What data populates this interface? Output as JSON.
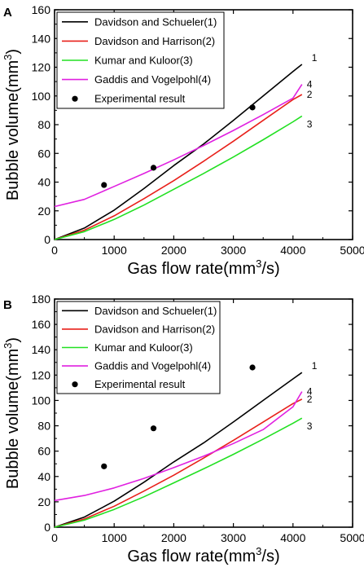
{
  "chart_data": [
    {
      "panel": "A",
      "type": "line",
      "xlabel": "Gas flow rate(mm³/s)",
      "ylabel": "Bubble volume(mm³)",
      "xlim": [
        0,
        5000
      ],
      "ylim": [
        0,
        160
      ],
      "xticks": [
        0,
        1000,
        2000,
        3000,
        4000,
        5000
      ],
      "yticks": [
        0,
        20,
        40,
        60,
        80,
        100,
        120,
        140,
        160
      ],
      "grid": false,
      "legend_position": "top-left",
      "series": [
        {
          "name": "Davidson and Schueler(1)",
          "label": "1",
          "color": "#000000",
          "type": "line",
          "x": [
            0,
            500,
            1000,
            1500,
            2000,
            2500,
            3000,
            3500,
            4000,
            4150
          ],
          "y": [
            0,
            8,
            20.5,
            35.5,
            51.5,
            66.5,
            83,
            100,
            117,
            122
          ]
        },
        {
          "name": "Davidson and Harrison(2)",
          "label": "2",
          "color": "#e8201a",
          "type": "line",
          "x": [
            0,
            500,
            1000,
            1500,
            2000,
            2500,
            3000,
            3500,
            4000,
            4150
          ],
          "y": [
            0,
            6.5,
            16.5,
            28.5,
            41,
            54.5,
            68.5,
            83,
            97.5,
            101
          ]
        },
        {
          "name": "Kumar and Kuloor(3)",
          "label": "3",
          "color": "#22e022",
          "type": "line",
          "x": [
            0,
            500,
            1000,
            1500,
            2000,
            2500,
            3000,
            3500,
            4000,
            4150
          ],
          "y": [
            0,
            5.5,
            14,
            24,
            35,
            46,
            57.5,
            69.5,
            82,
            86
          ]
        },
        {
          "name": "Gaddis and Vogelpohl(4)",
          "label": "4",
          "color": "#e020e0",
          "type": "line",
          "x": [
            0,
            500,
            1000,
            1500,
            2000,
            2500,
            3000,
            3500,
            4000,
            4150
          ],
          "y": [
            23,
            28,
            37,
            46,
            55.5,
            65.5,
            76,
            87,
            98.5,
            108
          ]
        },
        {
          "name": "Experimental result",
          "color": "#000000",
          "type": "scatter",
          "x": [
            830,
            1660,
            3320
          ],
          "y": [
            38,
            50,
            92
          ]
        }
      ]
    },
    {
      "panel": "B",
      "type": "line",
      "xlabel": "Gas flow rate(mm³/s)",
      "ylabel": "Bubble volume(mm³)",
      "xlim": [
        0,
        5000
      ],
      "ylim": [
        0,
        180
      ],
      "xticks": [
        0,
        1000,
        2000,
        3000,
        4000,
        5000
      ],
      "yticks": [
        0,
        20,
        40,
        60,
        80,
        100,
        120,
        140,
        160,
        180
      ],
      "grid": false,
      "legend_position": "top-left",
      "series": [
        {
          "name": "Davidson and Schueler(1)",
          "label": "1",
          "color": "#000000",
          "type": "line",
          "x": [
            0,
            500,
            1000,
            1500,
            2000,
            2500,
            3000,
            3500,
            4000,
            4150
          ],
          "y": [
            0,
            8,
            20.5,
            35.5,
            51.5,
            66.5,
            83,
            100,
            117,
            122
          ]
        },
        {
          "name": "Davidson and Harrison(2)",
          "label": "2",
          "color": "#e8201a",
          "type": "line",
          "x": [
            0,
            500,
            1000,
            1500,
            2000,
            2500,
            3000,
            3500,
            4000,
            4150
          ],
          "y": [
            0,
            6.5,
            16.5,
            28.5,
            41,
            54.5,
            68.5,
            83,
            97.5,
            101
          ]
        },
        {
          "name": "Kumar and Kuloor(3)",
          "label": "3",
          "color": "#22e022",
          "type": "line",
          "x": [
            0,
            500,
            1000,
            1500,
            2000,
            2500,
            3000,
            3500,
            4000,
            4150
          ],
          "y": [
            0,
            5.5,
            14,
            24,
            35,
            46,
            57.5,
            69.5,
            82,
            86
          ]
        },
        {
          "name": "Gaddis and Vogelpohl(4)",
          "label": "4",
          "color": "#e020e0",
          "type": "line",
          "x": [
            0,
            500,
            1000,
            1500,
            2000,
            2500,
            3000,
            3500,
            4000,
            4150
          ],
          "y": [
            21,
            25,
            31,
            38.5,
            47,
            56,
            66,
            77,
            95,
            107
          ]
        },
        {
          "name": "Experimental result",
          "color": "#000000",
          "type": "scatter",
          "x": [
            830,
            1660,
            3320
          ],
          "y": [
            48,
            78,
            126
          ]
        }
      ]
    }
  ]
}
